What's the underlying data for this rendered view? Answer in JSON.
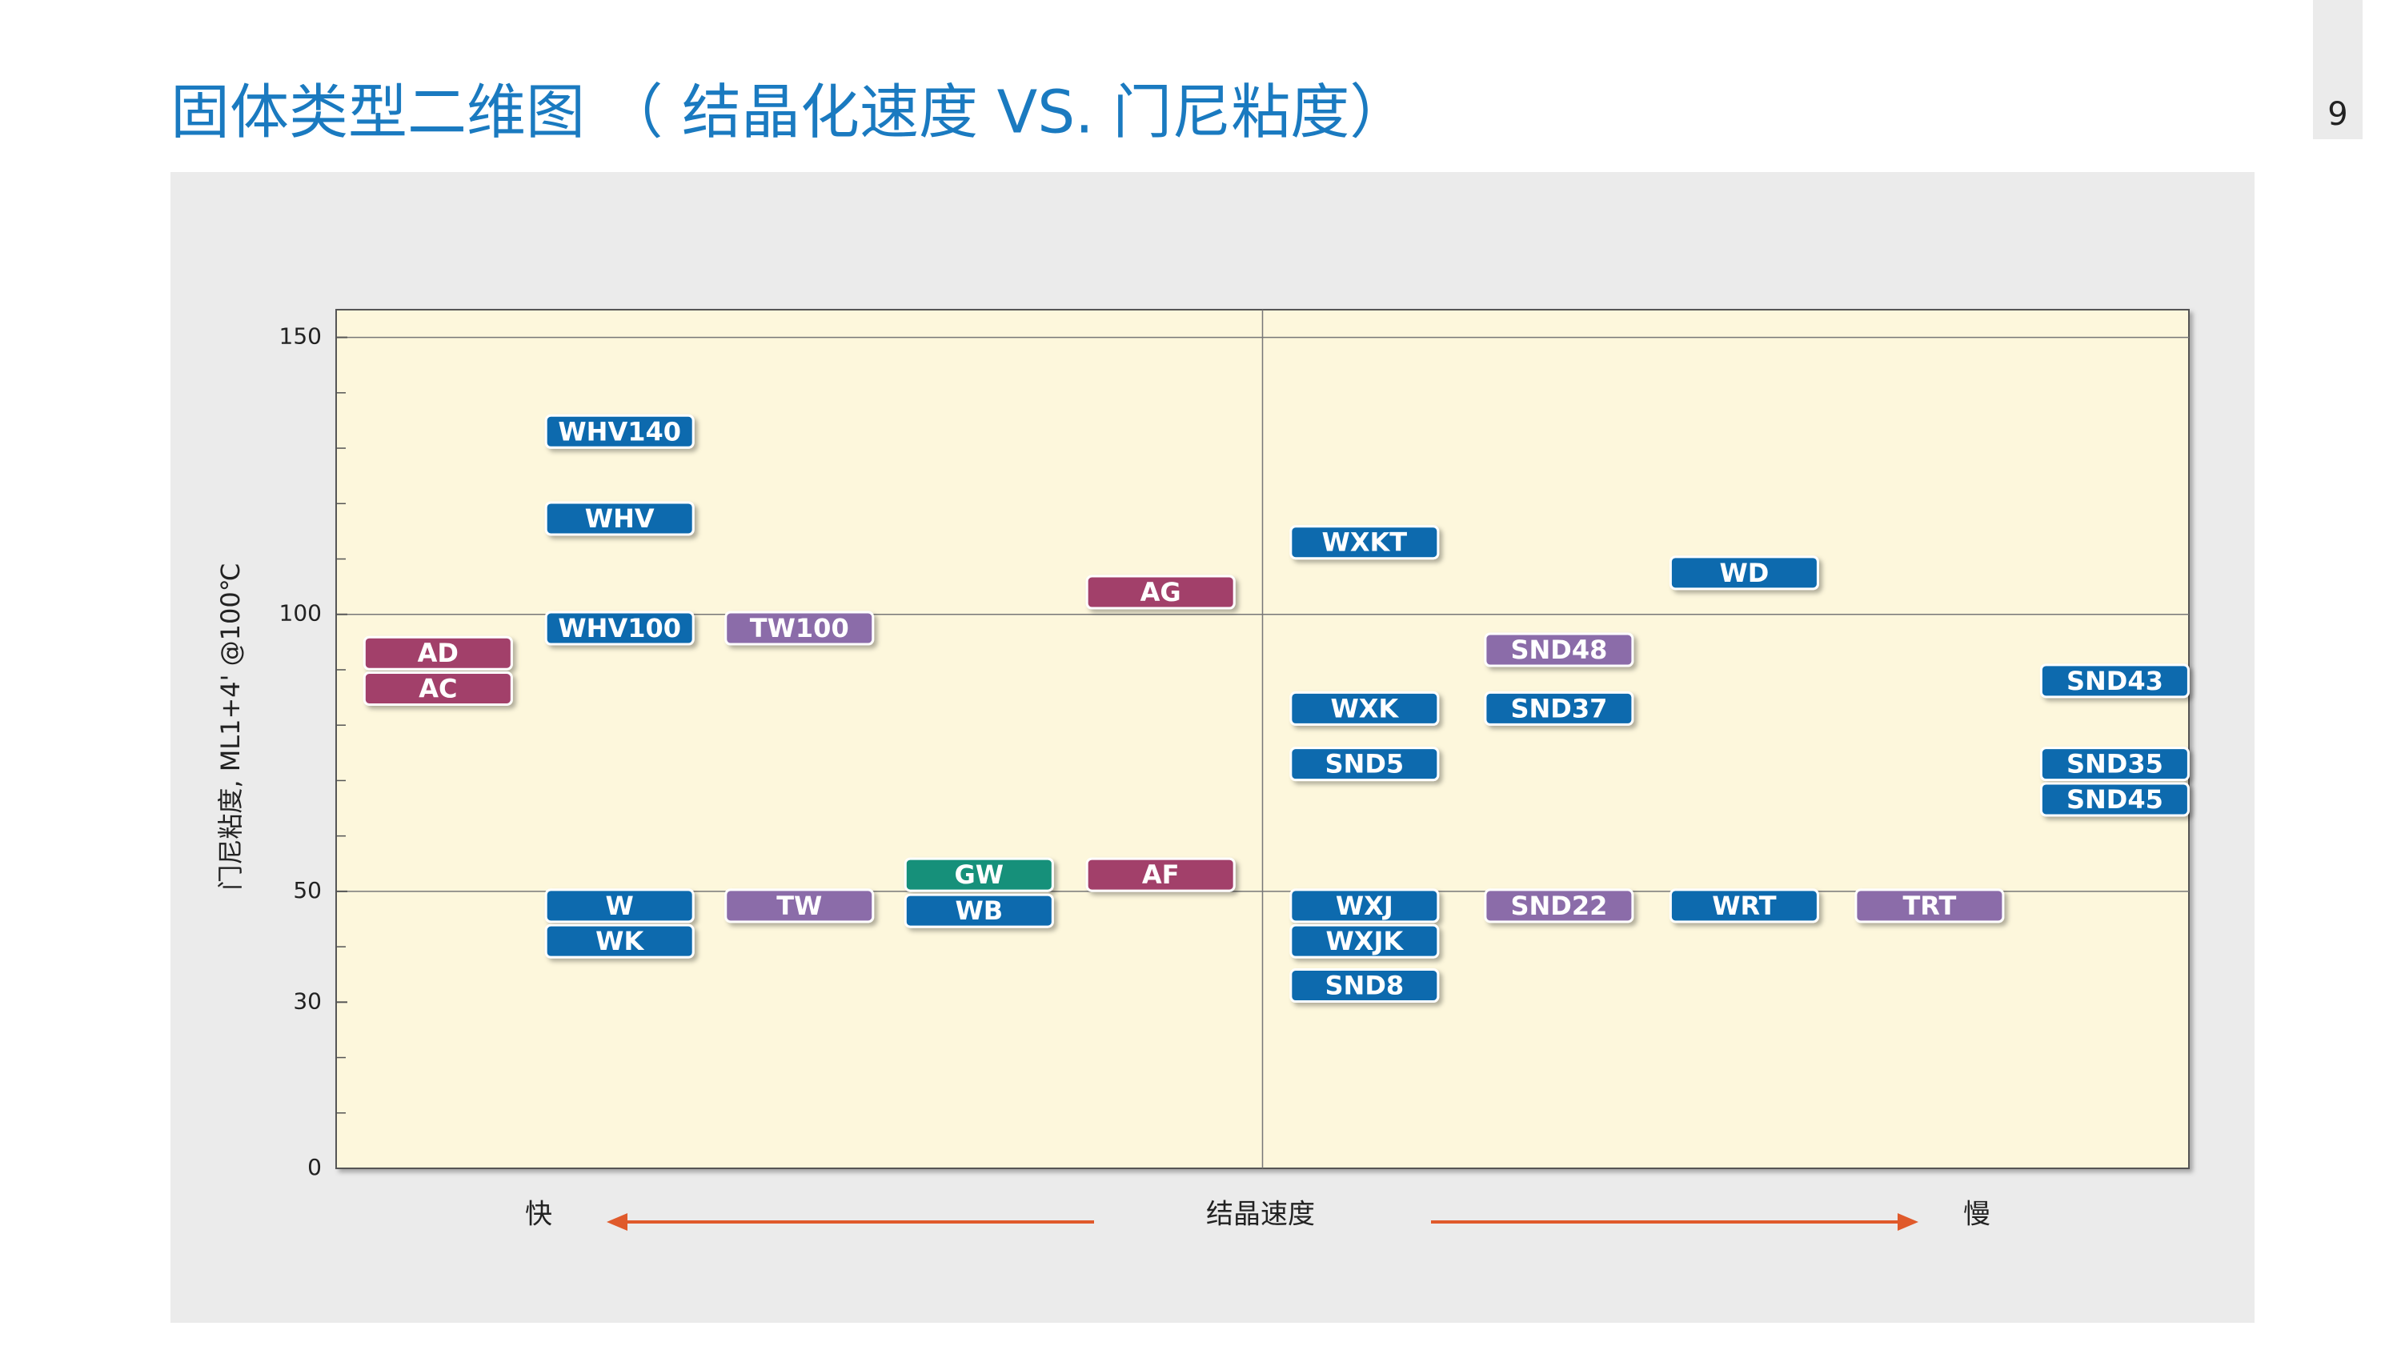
{
  "page_number": "9",
  "chart_data": {
    "type": "scatter",
    "title": "固体类型二维图 （ 结晶化速度 VS. 门尼粘度）",
    "ylabel": "门尼粘度, ML1+4' @100℃",
    "x_axis_labels": {
      "fast": "快",
      "title": "结晶速度",
      "slow": "慢"
    },
    "xlim": [
      0,
      10
    ],
    "ylim": [
      0,
      155
    ],
    "yticks": [
      0,
      30,
      50,
      100,
      150
    ],
    "minor_yticks": [
      10,
      20,
      40,
      60,
      70,
      80,
      90,
      110,
      120,
      130,
      140
    ],
    "grid": {
      "y": [
        50,
        100,
        150
      ],
      "x": [
        5
      ]
    },
    "points": [
      {
        "label": "AD",
        "x": 0.55,
        "y": 93,
        "color": "#a23f6b"
      },
      {
        "label": "AC",
        "x": 0.55,
        "y": 86.6,
        "color": "#a23f6b"
      },
      {
        "label": "WHV140",
        "x": 1.53,
        "y": 133,
        "color": "#0b6aae"
      },
      {
        "label": "WHV",
        "x": 1.53,
        "y": 117.3,
        "color": "#0b6aae"
      },
      {
        "label": "WHV100",
        "x": 1.53,
        "y": 97.5,
        "color": "#0b6aae"
      },
      {
        "label": "W",
        "x": 1.53,
        "y": 47.4,
        "color": "#0b6aae"
      },
      {
        "label": "WK",
        "x": 1.53,
        "y": 41,
        "color": "#0b6aae"
      },
      {
        "label": "TW100",
        "x": 2.5,
        "y": 97.5,
        "color": "#8b6ca9"
      },
      {
        "label": "TW",
        "x": 2.5,
        "y": 47.4,
        "color": "#8b6ca9"
      },
      {
        "label": "GW",
        "x": 3.47,
        "y": 53,
        "color": "#13907a"
      },
      {
        "label": "WB",
        "x": 3.47,
        "y": 46.5,
        "color": "#0b6aae"
      },
      {
        "label": "AG",
        "x": 4.45,
        "y": 104,
        "color": "#a23f6b"
      },
      {
        "label": "AF",
        "x": 4.45,
        "y": 53,
        "color": "#a23f6b"
      },
      {
        "label": "WXKT",
        "x": 5.55,
        "y": 113,
        "color": "#0b6aae"
      },
      {
        "label": "WXK",
        "x": 5.55,
        "y": 83,
        "color": "#0b6aae"
      },
      {
        "label": "SND5",
        "x": 5.55,
        "y": 73,
        "color": "#0b6aae"
      },
      {
        "label": "WXJ",
        "x": 5.55,
        "y": 47.4,
        "color": "#0b6aae"
      },
      {
        "label": "WXJK",
        "x": 5.55,
        "y": 41,
        "color": "#0b6aae"
      },
      {
        "label": "SND8",
        "x": 5.55,
        "y": 33,
        "color": "#0b6aae"
      },
      {
        "label": "SND48",
        "x": 6.6,
        "y": 93.6,
        "color": "#8b6ca9"
      },
      {
        "label": "SND37",
        "x": 6.6,
        "y": 83,
        "color": "#0b6aae"
      },
      {
        "label": "SND22",
        "x": 6.6,
        "y": 47.4,
        "color": "#8b6ca9"
      },
      {
        "label": "WD",
        "x": 7.6,
        "y": 107.5,
        "color": "#0b6aae"
      },
      {
        "label": "WRT",
        "x": 7.6,
        "y": 47.4,
        "color": "#0b6aae"
      },
      {
        "label": "TRT",
        "x": 8.6,
        "y": 47.4,
        "color": "#8b6ca9"
      },
      {
        "label": "SND43",
        "x": 9.6,
        "y": 88,
        "color": "#0b6aae"
      },
      {
        "label": "SND35",
        "x": 9.6,
        "y": 73,
        "color": "#0b6aae"
      },
      {
        "label": "SND45",
        "x": 9.6,
        "y": 66.6,
        "color": "#0b6aae"
      }
    ]
  }
}
